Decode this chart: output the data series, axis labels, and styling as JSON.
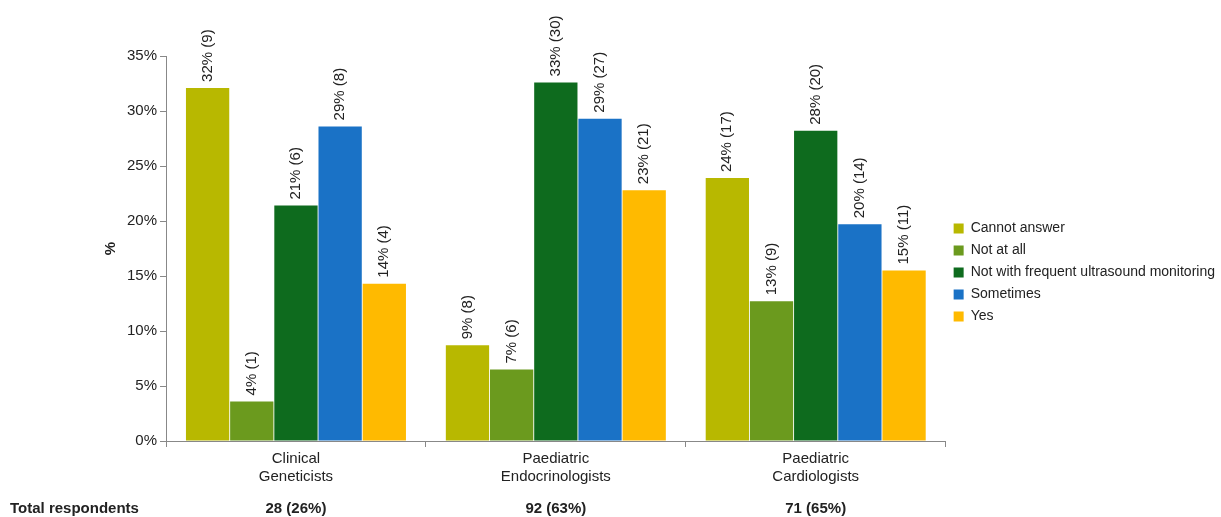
{
  "chart_data": {
    "type": "bar",
    "ylabel": "%",
    "categories": [
      "Clinical Geneticists",
      "Paediatric Endocrinologists",
      "Paediatric Cardiologists"
    ],
    "series": [
      {
        "name": "Cannot answer",
        "color": "#b8b800",
        "values": [
          32.1,
          8.7,
          23.9
        ],
        "value_labels": [
          "32% (9)",
          "9% (8)",
          "24% (17)"
        ]
      },
      {
        "name": "Not at all",
        "color": "#6b9a1e",
        "values": [
          3.6,
          6.5,
          12.7
        ],
        "value_labels": [
          "4% (1)",
          "7% (6)",
          "13% (9)"
        ]
      },
      {
        "name": "Not with frequent ultrasound monitoring",
        "color": "#0e6b1e",
        "values": [
          21.4,
          32.6,
          28.2
        ],
        "value_labels": [
          "21% (6)",
          "33% (30)",
          "28% (20)"
        ]
      },
      {
        "name": "Sometimes",
        "color": "#1a72c6",
        "values": [
          28.6,
          29.3,
          19.7
        ],
        "value_labels": [
          "29% (8)",
          "29% (27)",
          "20% (14)"
        ]
      },
      {
        "name": "Yes",
        "color": "#ffba00",
        "values": [
          14.3,
          22.8,
          15.5
        ],
        "value_labels": [
          "14% (4)",
          "23% (21)",
          "15% (11)"
        ]
      }
    ],
    "ylim": [
      0,
      35
    ],
    "yticks": [
      {
        "value": 0,
        "label": "0%"
      },
      {
        "value": 5,
        "label": "5%"
      },
      {
        "value": 10,
        "label": "10%"
      },
      {
        "value": 15,
        "label": "15%"
      },
      {
        "value": 20,
        "label": "20%"
      },
      {
        "value": 25,
        "label": "25%"
      },
      {
        "value": 30,
        "label": "30%"
      },
      {
        "value": 35,
        "label": "35%"
      }
    ],
    "grid": false,
    "legend": "right",
    "annotations": [
      "Total respondents",
      "28 (26%)",
      "92 (63%)",
      "71 (65%)"
    ]
  }
}
